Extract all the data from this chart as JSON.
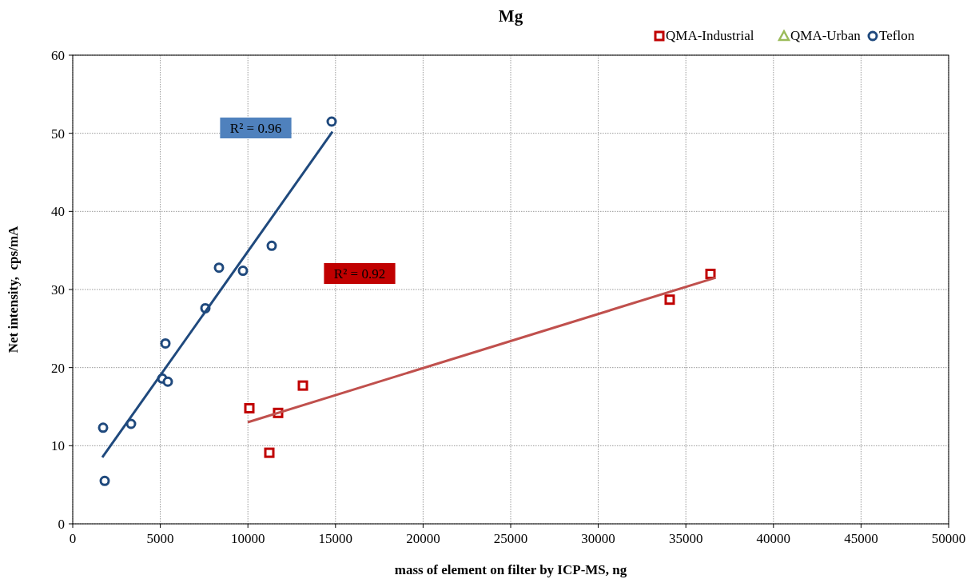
{
  "chart_data": {
    "type": "scatter",
    "title": "Mg",
    "xlabel": "mass of element on filter by ICP-MS, ng",
    "ylabel": "Net intensity,  cps/mA",
    "xlim": [
      0,
      50000
    ],
    "xticks": [
      0,
      5000,
      10000,
      15000,
      20000,
      25000,
      30000,
      35000,
      40000,
      45000,
      50000
    ],
    "ylim": [
      0,
      60
    ],
    "yticks": [
      0,
      10,
      20,
      30,
      40,
      50,
      60
    ],
    "grid": true,
    "legend": "top right",
    "series": [
      {
        "name": "QMA-Industrial",
        "marker": "square",
        "color": "#c00000",
        "x": [
          10082,
          11223,
          11724,
          13139,
          34078,
          36405
        ],
        "values": [
          14.8,
          9.1,
          14.2,
          17.7,
          28.7,
          32.0
        ]
      },
      {
        "name": "QMA-Urban",
        "marker": "triangle",
        "color": "#9bbb59"
      },
      {
        "name": "Teflon",
        "marker": "circle",
        "color": "#1f497d",
        "x": [
          1734,
          1825,
          3330,
          5110,
          5292,
          5429,
          7573,
          8349,
          9717,
          11359,
          14781
        ],
        "values": [
          12.3,
          5.5,
          12.8,
          18.6,
          23.1,
          18.2,
          27.6,
          32.8,
          32.4,
          35.6,
          51.5
        ]
      },
      {
        "type": "line",
        "marker": "none",
        "color": "#1f497d",
        "x": [
          1688,
          14827
        ],
        "values": [
          8.5,
          50.2
        ]
      },
      {
        "type": "line",
        "marker": "none",
        "color": "#c0504d",
        "x": [
          9990,
          36679
        ],
        "values": [
          13.0,
          31.5
        ]
      }
    ],
    "annotations": [
      "R² = 0.96",
      "R² = 0.92"
    ]
  }
}
